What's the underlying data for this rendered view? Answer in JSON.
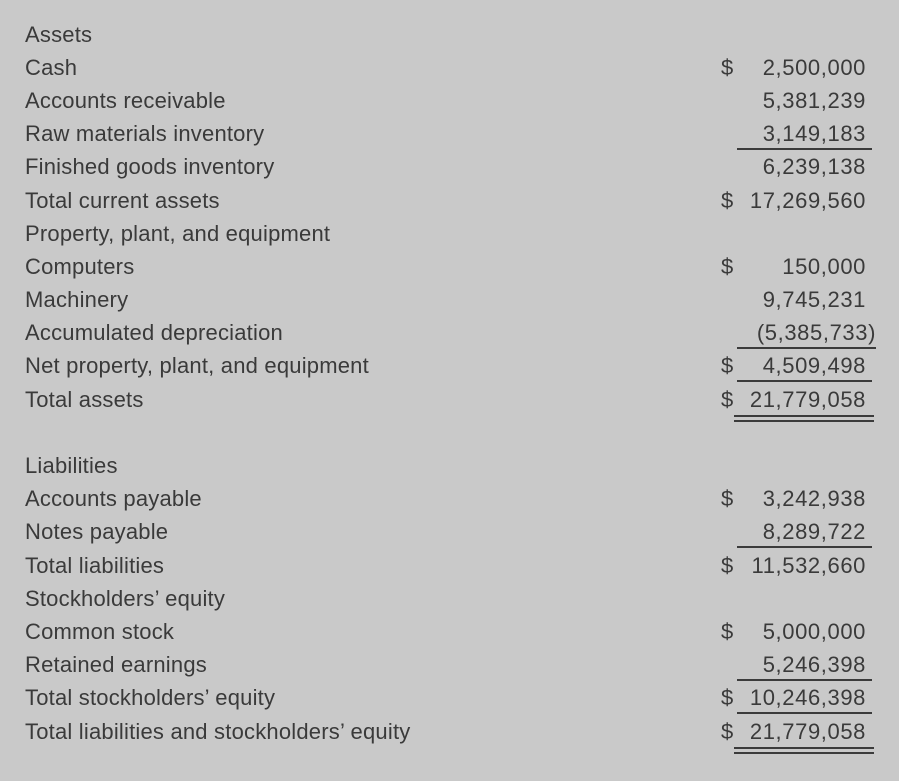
{
  "page": {
    "background_color": "#c9c9c9",
    "text_color": "#3a3a3a",
    "rule_color": "#3b3b3b"
  },
  "balance_sheet": {
    "rows": [
      {
        "label": "Assets",
        "style": "section-header"
      },
      {
        "label": "Cash",
        "dollar": "$",
        "amount": "2,500,000"
      },
      {
        "label": "Accounts receivable",
        "amount": "5,381,239"
      },
      {
        "label": "Raw materials inventory",
        "amount": "3,149,183",
        "underline": "single"
      },
      {
        "label": "Finished goods inventory",
        "amount": "6,239,138"
      },
      {
        "label": "Total current assets",
        "dollar": "$",
        "amount": "17,269,560"
      },
      {
        "label": "Property, plant, and equipment",
        "style": "section-header"
      },
      {
        "label": "Computers",
        "dollar": "$",
        "amount": "150,000"
      },
      {
        "label": "Machinery",
        "amount": "9,745,231"
      },
      {
        "label": "Accumulated depreciation",
        "amount": "(5,385,733)",
        "underline": "single"
      },
      {
        "label": "Net property, plant, and equipment",
        "dollar": "$",
        "amount": "4,509,498",
        "underline": "single"
      },
      {
        "label": "Total assets",
        "dollar": "$",
        "amount": "21,779,058",
        "underline": "double"
      },
      {
        "type": "spacer"
      },
      {
        "label": "Liabilities",
        "style": "section-header"
      },
      {
        "label": "Accounts payable",
        "dollar": "$",
        "amount": "3,242,938"
      },
      {
        "label": "Notes payable",
        "amount": "8,289,722",
        "underline": "single"
      },
      {
        "label": "Total liabilities",
        "dollar": "$",
        "amount": "11,532,660"
      },
      {
        "label": "Stockholders’ equity",
        "style": "section-header"
      },
      {
        "label": "Common stock",
        "dollar": "$",
        "amount": "5,000,000"
      },
      {
        "label": "Retained earnings",
        "amount": "5,246,398",
        "underline": "single"
      },
      {
        "label": "Total stockholders’ equity",
        "dollar": "$",
        "amount": "10,246,398",
        "underline": "single"
      },
      {
        "label": "Total liabilities and stockholders’ equity",
        "dollar": "$",
        "amount": "21,779,058",
        "underline": "double"
      }
    ]
  }
}
